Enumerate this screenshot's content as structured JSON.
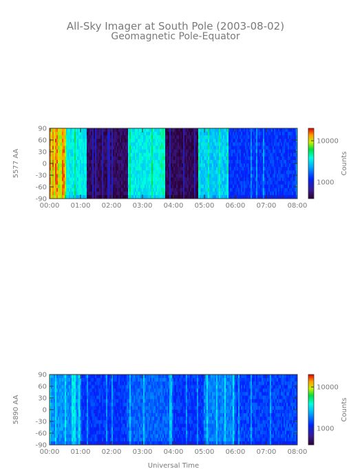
{
  "title": "All-Sky Imager at South Pole (2003-08-02)",
  "subtitle": "Geomagnetic Pole-Equator",
  "xlabel": "Universal Time",
  "chart_data": [
    {
      "type": "heatmap",
      "ylabel": "5577 AA",
      "x_ticks": [
        "00:00",
        "01:00",
        "02:00",
        "03:00",
        "04:00",
        "05:00",
        "06:00",
        "07:00",
        "08:00"
      ],
      "xlim_hours": [
        0,
        8
      ],
      "y_ticks": [
        90,
        60,
        30,
        0,
        -30,
        -60,
        -90
      ],
      "ylim": [
        -90,
        90
      ],
      "colorbar_label": "Counts",
      "colorbar_ticks": [
        10000,
        1000
      ],
      "colorbar_range": [
        400,
        20000
      ],
      "colorbar_scale": "log",
      "segments": [
        {
          "start": 0.0,
          "end": 0.55,
          "level": 0.8
        },
        {
          "start": 0.55,
          "end": 1.2,
          "level": 0.55
        },
        {
          "start": 1.2,
          "end": 2.55,
          "level": 0.06
        },
        {
          "start": 2.55,
          "end": 3.55,
          "level": 0.55
        },
        {
          "start": 3.55,
          "end": 3.75,
          "level": 0.6
        },
        {
          "start": 3.75,
          "end": 4.8,
          "level": 0.05
        },
        {
          "start": 4.8,
          "end": 5.8,
          "level": 0.5
        },
        {
          "start": 5.8,
          "end": 8.0,
          "level": 0.3
        }
      ]
    },
    {
      "type": "heatmap",
      "ylabel": "5890 AA",
      "x_ticks": [
        "00:00",
        "01:00",
        "02:00",
        "03:00",
        "04:00",
        "05:00",
        "06:00",
        "07:00",
        "08:00"
      ],
      "xlim_hours": [
        0,
        8
      ],
      "y_ticks": [
        90,
        60,
        30,
        0,
        -30,
        -60,
        -90
      ],
      "ylim": [
        -90,
        90
      ],
      "colorbar_label": "Counts",
      "colorbar_ticks": [
        10000,
        1000
      ],
      "colorbar_range": [
        400,
        20000
      ],
      "colorbar_scale": "log",
      "segments": [
        {
          "start": 0.0,
          "end": 1.0,
          "level": 0.42
        },
        {
          "start": 1.0,
          "end": 2.5,
          "level": 0.3
        },
        {
          "start": 2.5,
          "end": 4.0,
          "level": 0.36
        },
        {
          "start": 4.0,
          "end": 5.0,
          "level": 0.3
        },
        {
          "start": 5.0,
          "end": 6.0,
          "level": 0.4
        },
        {
          "start": 6.0,
          "end": 8.0,
          "level": 0.32
        }
      ]
    }
  ]
}
